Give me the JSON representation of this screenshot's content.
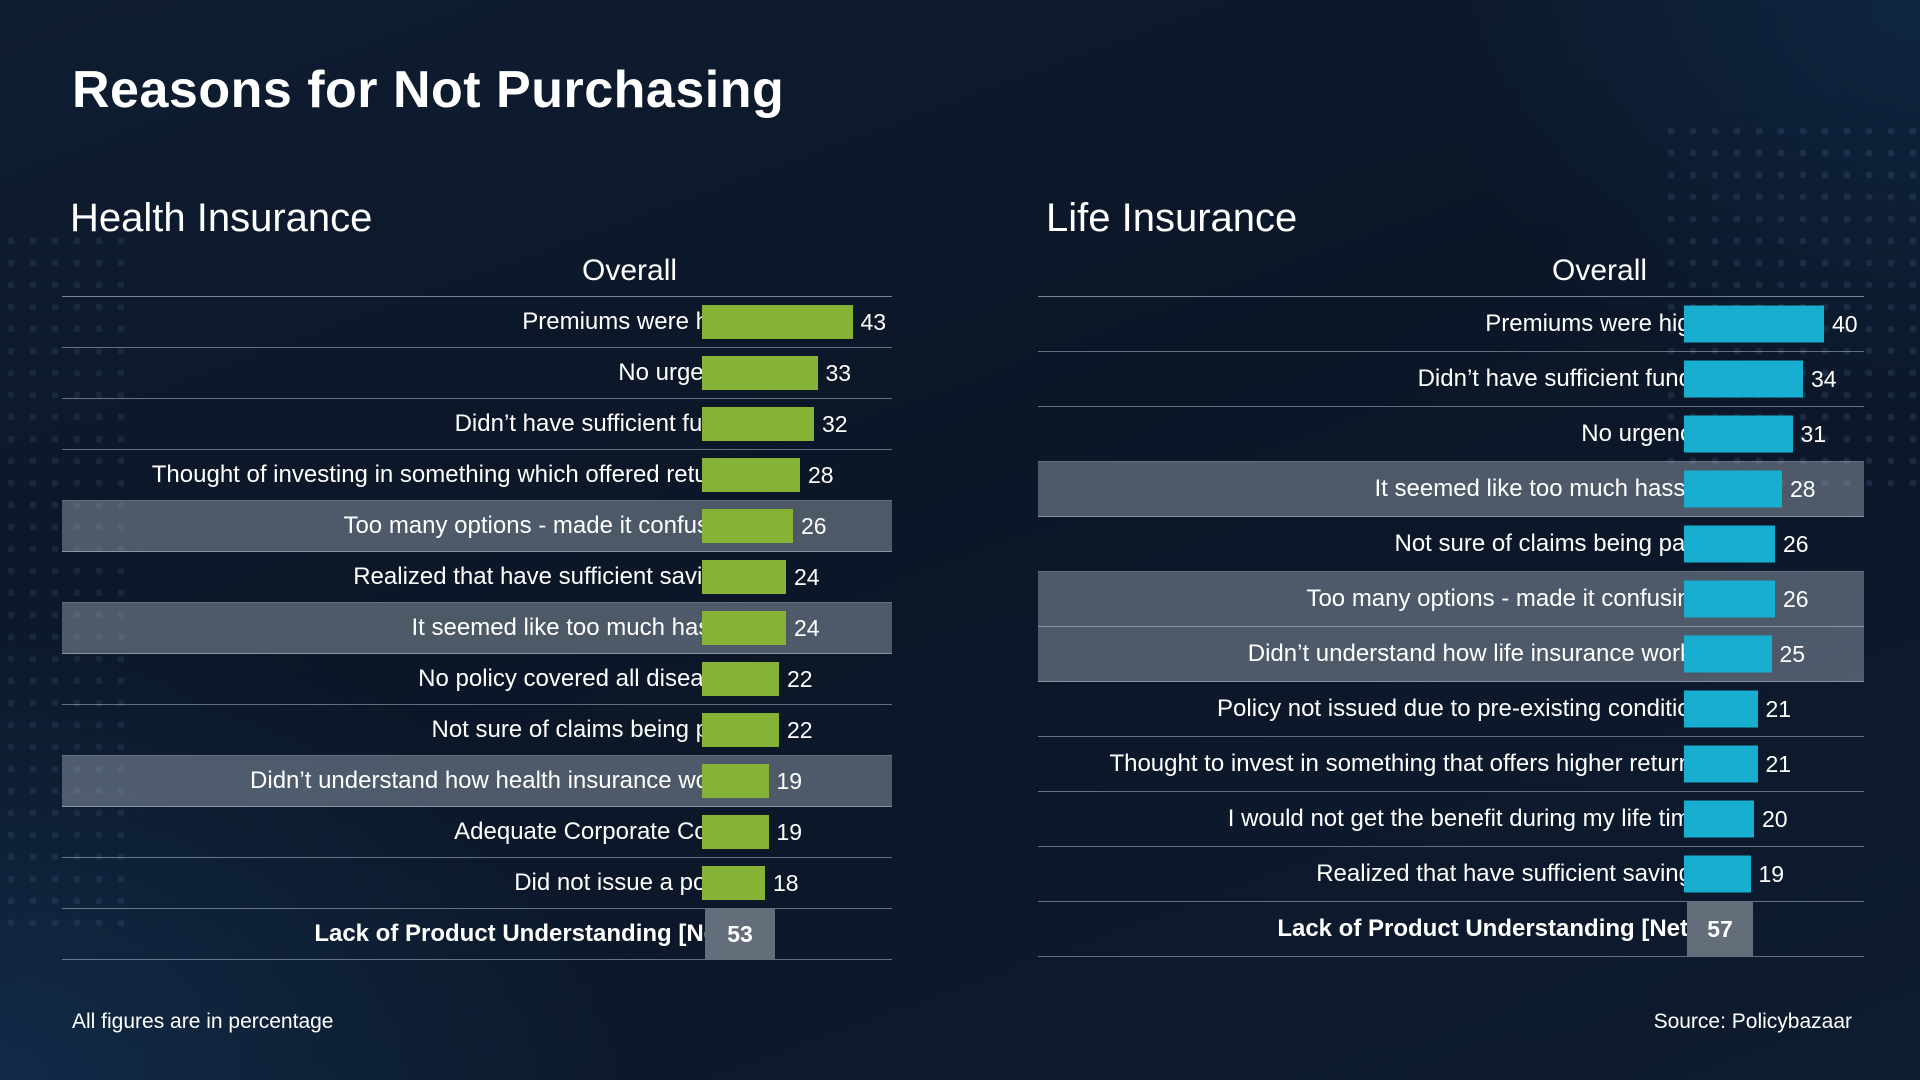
{
  "title": "Reasons for Not Purchasing",
  "footnote": "All figures are in percentage",
  "source": "Source: Policybazaar",
  "colors": {
    "health_bar": "#86b236",
    "life_bar": "#17aed0",
    "total_box": "#646d7a",
    "highlight": "#8f98a6"
  },
  "chart_data": [
    {
      "type": "bar",
      "orientation": "horizontal",
      "title": "Health Insurance",
      "subtitle": "Overall",
      "bar_color": "#86b236",
      "categories": [
        "Premiums were high",
        "No urgency",
        "Didn’t have sufficient funds",
        "Thought of investing in something which offered returns",
        "Too many options - made it confusing",
        "Realized that have sufficient savings",
        "It seemed like too much hassle",
        "No policy covered all diseases",
        "Not sure of claims being paid",
        "Didn’t understand how health insurance works",
        "Adequate Corporate Cover",
        "Did not issue a policy"
      ],
      "values": [
        43,
        33,
        32,
        28,
        26,
        24,
        24,
        22,
        22,
        19,
        19,
        18
      ],
      "highlighted": [
        false,
        false,
        false,
        false,
        true,
        false,
        true,
        false,
        false,
        true,
        false,
        false
      ],
      "total": {
        "label": "Lack of Product Understanding [Nett]",
        "value": 53
      }
    },
    {
      "type": "bar",
      "orientation": "horizontal",
      "title": "Life Insurance",
      "subtitle": "Overall",
      "bar_color": "#17aed0",
      "categories": [
        "Premiums were high",
        "Didn’t have sufficient funds",
        "No urgency",
        "It seemed like too much hassle",
        "Not sure of claims being paid",
        "Too many options - made it confusing",
        "Didn’t understand how life insurance works",
        "Policy not issued due to pre-existing condition",
        "Thought to invest in something that offers higher returns",
        "I would not get the benefit during my life time",
        "Realized that have sufficient savings"
      ],
      "values": [
        40,
        34,
        31,
        28,
        26,
        26,
        25,
        21,
        21,
        20,
        19
      ],
      "highlighted": [
        false,
        false,
        false,
        true,
        false,
        true,
        true,
        false,
        false,
        false,
        false
      ],
      "total": {
        "label": "Lack of Product Understanding [Nett]",
        "value": 57
      }
    }
  ]
}
